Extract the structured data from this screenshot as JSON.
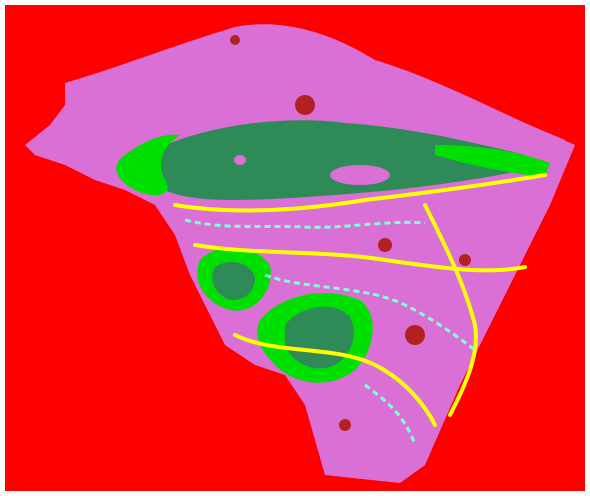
{
  "map": {
    "colors": {
      "background": "#ff0000",
      "upland": "#da70d6",
      "water_deep": "#2e8b57",
      "water_shallow": "#00e000",
      "shoreline": "#ffff00",
      "moist": "#7fffd4",
      "wetland_dark": "#b22222"
    },
    "legend_visible": false
  }
}
